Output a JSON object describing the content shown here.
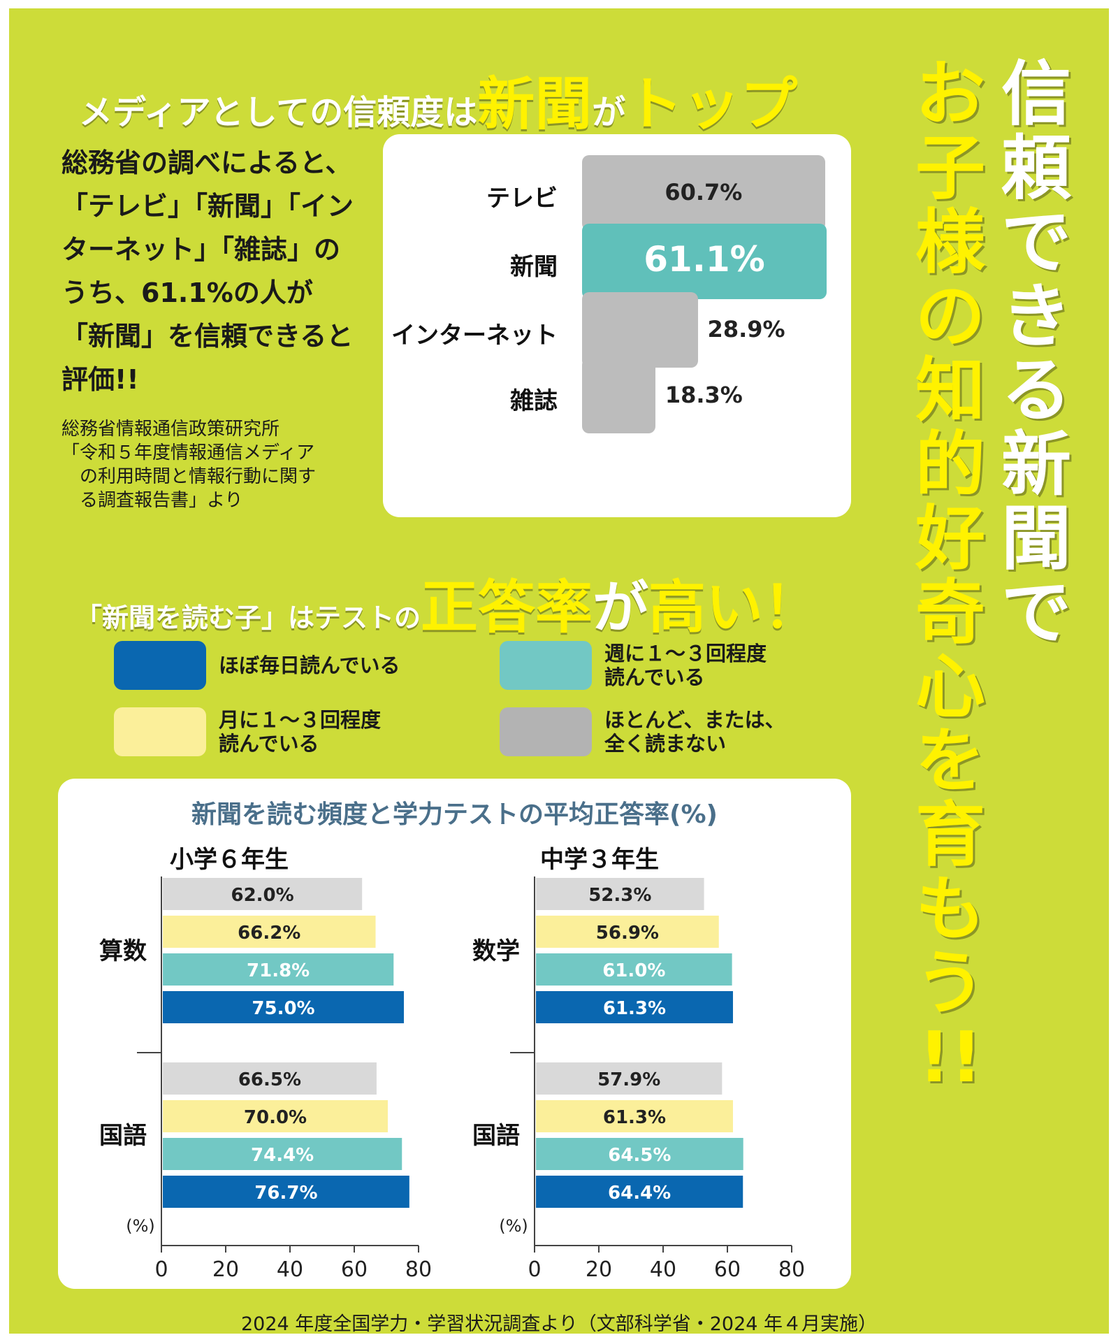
{
  "headline_top": {
    "pre": "メディアとしての信頼度は",
    "big1": "新聞",
    "mid": "が",
    "big2": "トップ"
  },
  "intro_text": "総務省の調べによると、「テレビ」「新聞」「インターネット」「雑誌」のうち、61.1%の人が「新聞」を信頼できると評価!!",
  "source_note": "総務省情報通信政策研究所\n「令和５年度情報通信メディア\n　の利用時間と情報行動に関す\n　る調査報告書」より",
  "vertical_title": {
    "col_right": [
      "信",
      "頼",
      "で",
      "き",
      "る",
      "新",
      "聞",
      "で"
    ],
    "col_left": [
      "お",
      "子",
      "様",
      "の",
      "知",
      "的",
      "好",
      "奇",
      "心",
      "を",
      "育",
      "も",
      "う",
      "!!"
    ]
  },
  "headline_mid": {
    "pre": "「新聞を読む子」はテストの",
    "big": "正答率",
    "mid": "が",
    "big2": "高い！"
  },
  "legend": [
    {
      "label": "ほぼ毎日読んでいる",
      "color": "#0a67b0"
    },
    {
      "label": "週に１～３回程度\n読んでいる",
      "color": "#72c8c4"
    },
    {
      "label": "月に１～３回程度\n読んでいる",
      "color": "#fbef9a"
    },
    {
      "label": "ほとんど、または、\n全く読まない",
      "color": "#b3b3b3"
    }
  ],
  "chart_data": [
    {
      "type": "bar",
      "orientation": "horizontal",
      "categories": [
        "テレビ",
        "新聞",
        "インターネット",
        "雑誌"
      ],
      "values": [
        60.7,
        61.1,
        28.9,
        18.3
      ],
      "value_labels": [
        "60.7%",
        "61.1%",
        "28.9%",
        "18.3%"
      ],
      "highlight": "新聞",
      "colors": {
        "default": "#bcbcbc",
        "highlight": "#60c0ba"
      }
    },
    {
      "type": "bar",
      "orientation": "horizontal",
      "title": "新聞を読む頻度と学力テストの平均正答率(%)",
      "panel": "小学６年生",
      "xlabel": "(%)",
      "xlim": [
        0,
        80
      ],
      "xticks": [
        0,
        20,
        40,
        60,
        80
      ],
      "groups": [
        {
          "subject": "算数",
          "series": [
            {
              "name": "ほとんど、または、全く読まない",
              "value": 62.0,
              "label": "62.0%"
            },
            {
              "name": "月に１～３回程度読んでいる",
              "value": 66.2,
              "label": "66.2%"
            },
            {
              "name": "週に１～３回程度読んでいる",
              "value": 71.8,
              "label": "71.8%"
            },
            {
              "name": "ほぼ毎日読んでいる",
              "value": 75.0,
              "label": "75.0%"
            }
          ]
        },
        {
          "subject": "国語",
          "series": [
            {
              "name": "ほとんど、または、全く読まない",
              "value": 66.5,
              "label": "66.5%"
            },
            {
              "name": "月に１～３回程度読んでいる",
              "value": 70.0,
              "label": "70.0%"
            },
            {
              "name": "週に１～３回程度読んでいる",
              "value": 74.4,
              "label": "74.4%"
            },
            {
              "name": "ほぼ毎日読んでいる",
              "value": 76.7,
              "label": "76.7%"
            }
          ]
        }
      ]
    },
    {
      "type": "bar",
      "orientation": "horizontal",
      "panel": "中学３年生",
      "xlabel": "(%)",
      "xlim": [
        0,
        80
      ],
      "xticks": [
        0,
        20,
        40,
        60,
        80
      ],
      "groups": [
        {
          "subject": "数学",
          "series": [
            {
              "name": "ほとんど、または、全く読まない",
              "value": 52.3,
              "label": "52.3%"
            },
            {
              "name": "月に１～３回程度読んでいる",
              "value": 56.9,
              "label": "56.9%"
            },
            {
              "name": "週に１～３回程度読んでいる",
              "value": 61.0,
              "label": "61.0%"
            },
            {
              "name": "ほぼ毎日読んでいる",
              "value": 61.3,
              "label": "61.3%"
            }
          ]
        },
        {
          "subject": "国語",
          "series": [
            {
              "name": "ほとんど、または、全く読まない",
              "value": 57.9,
              "label": "57.9%"
            },
            {
              "name": "月に１～３回程度読んでいる",
              "value": 61.3,
              "label": "61.3%"
            },
            {
              "name": "週に１～３回程度読んでいる",
              "value": 64.5,
              "label": "64.5%"
            },
            {
              "name": "ほぼ毎日読んでいる",
              "value": 64.4,
              "label": "64.4%"
            }
          ]
        }
      ]
    }
  ],
  "bar_colors": [
    "#d9d9d9",
    "#fbef9a",
    "#72c8c4",
    "#0a67b0"
  ],
  "bottom_note": "2024 年度全国学力・学習状況調査より（文部科学省・2024 年４月実施）"
}
